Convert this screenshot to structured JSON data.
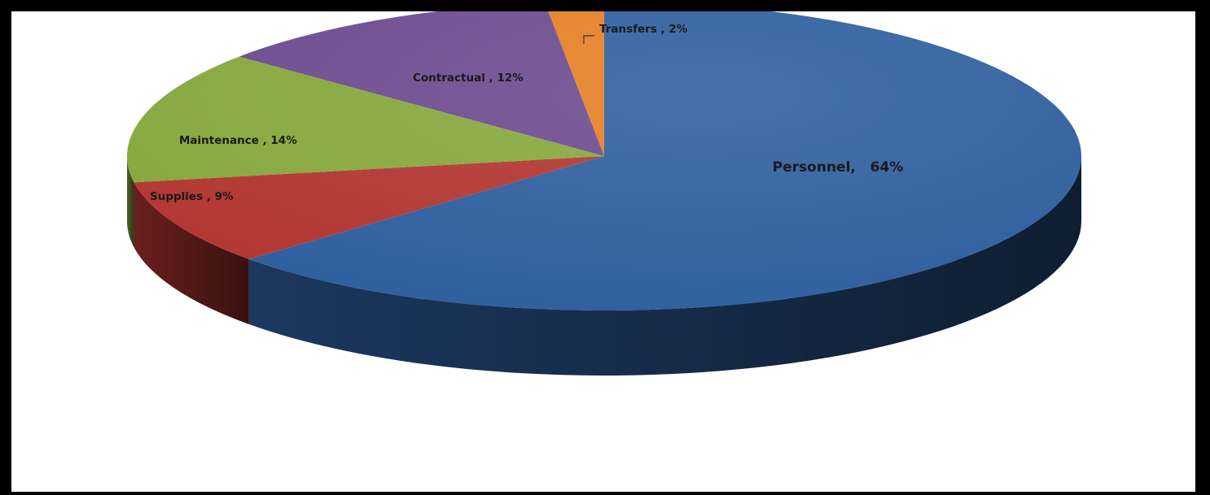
{
  "chart_data": {
    "type": "pie",
    "title": "",
    "style": "3d",
    "slices": [
      {
        "label": "Personnel,   64%",
        "name": "Personnel",
        "value": 64,
        "color": "#2E5E9E"
      },
      {
        "label": "Supplies , 9%",
        "name": "Supplies",
        "value": 9,
        "color": "#B23530"
      },
      {
        "label": "Maintenance , 14%",
        "name": "Maintenance",
        "value": 14,
        "color": "#86A73C"
      },
      {
        "label": "Contractual , 12%",
        "name": "Contractual",
        "value": 12,
        "color": "#6B4A8F"
      },
      {
        "label": "Transfers , 2%",
        "name": "Transfers",
        "value": 2,
        "color": "#E67E22"
      }
    ],
    "legend": "none"
  }
}
